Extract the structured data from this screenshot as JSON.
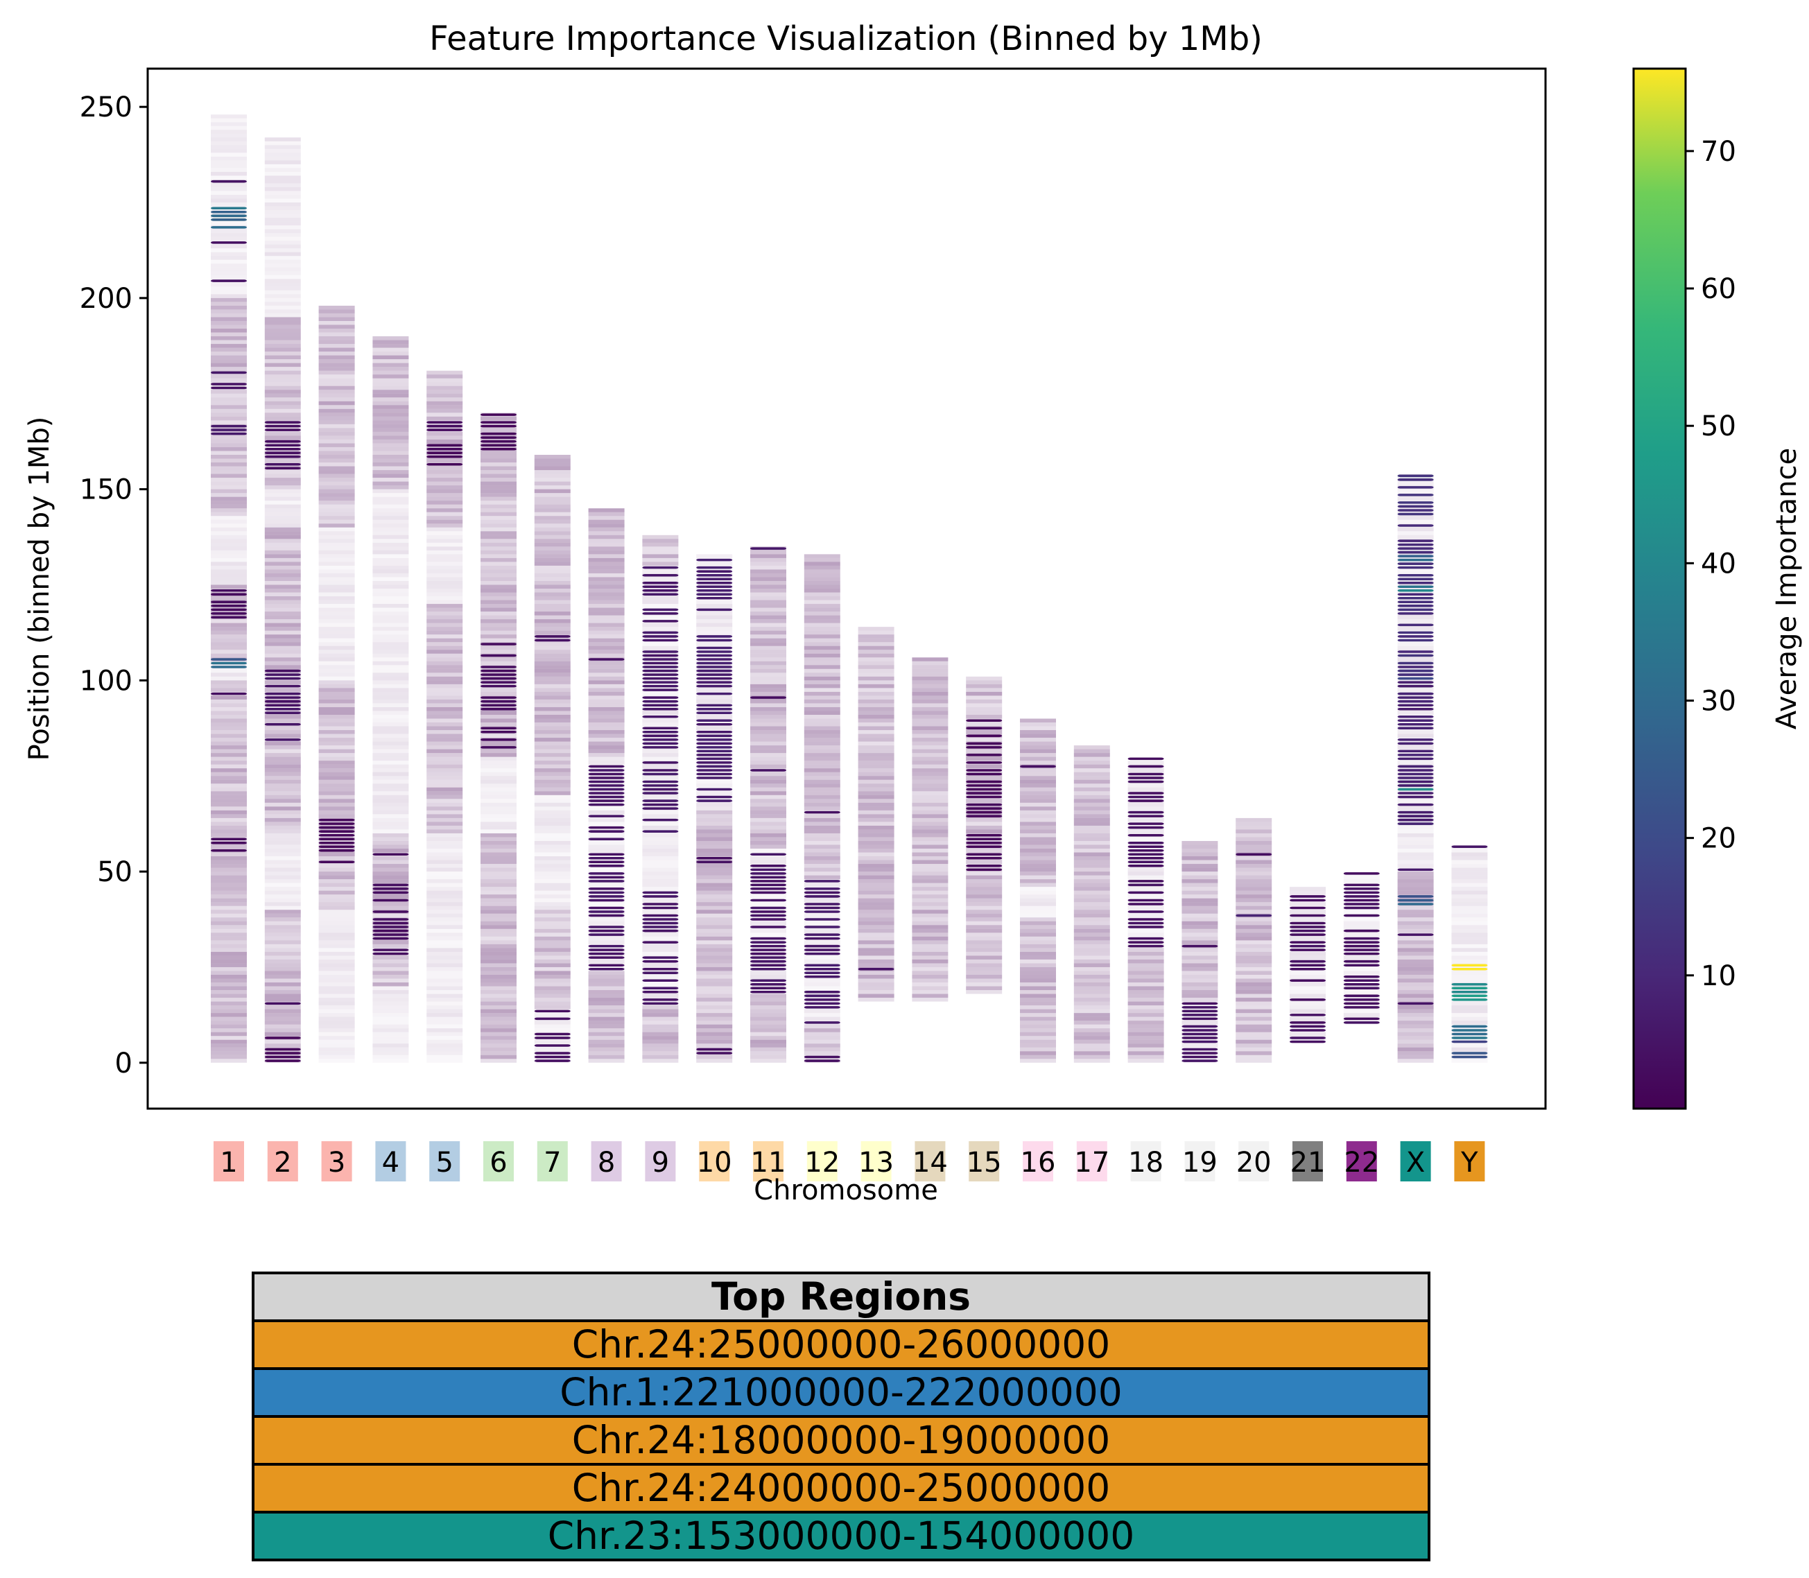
{
  "chart_data": {
    "type": "heatmap",
    "title": "Feature Importance Visualization (Binned by 1Mb)",
    "xlabel": "Chromosome",
    "ylabel": "Position (binned by 1Mb)",
    "ylim": [
      -12,
      260
    ],
    "yticks": [
      0,
      50,
      100,
      150,
      200,
      250
    ],
    "colorbar": {
      "label": "Average Importance",
      "min": 0.3,
      "max": 76,
      "ticks": [
        10,
        20,
        30,
        40,
        50,
        60,
        70
      ],
      "colormap": "viridis"
    },
    "chromosomes": [
      {
        "label": "1",
        "color": "#fbb4ae",
        "start": 0,
        "end": 248,
        "hot": [
          [
            220,
            222,
            70
          ],
          [
            218,
            224,
            30
          ],
          [
            103,
            106,
            30
          ],
          [
            164,
            167,
            6
          ],
          [
            176,
            182,
            5
          ],
          [
            230,
            231,
            4
          ],
          [
            214,
            215,
            4
          ],
          [
            204,
            205,
            4
          ],
          [
            96,
            97,
            4
          ],
          [
            55,
            60,
            3
          ],
          [
            116,
            125,
            3
          ]
        ],
        "warm": [
          [
            143,
            200
          ],
          [
            105,
            125
          ],
          [
            0,
            100
          ]
        ]
      },
      {
        "label": "2",
        "color": "#fbb4ae",
        "start": 0,
        "end": 242,
        "hot": [
          [
            84,
            103,
            5
          ],
          [
            155,
            168,
            4
          ],
          [
            15,
            16,
            4
          ],
          [
            0,
            10,
            2
          ]
        ],
        "warm": [
          [
            150,
            195
          ],
          [
            60,
            140
          ],
          [
            0,
            40
          ]
        ]
      },
      {
        "label": "3",
        "color": "#fbb4ae",
        "start": 0,
        "end": 198,
        "hot": [
          [
            52,
            65,
            2
          ]
        ],
        "warm": [
          [
            140,
            198
          ],
          [
            40,
            100
          ]
        ]
      },
      {
        "label": "4",
        "color": "#b3cde3",
        "start": 0,
        "end": 190,
        "hot": [
          [
            26,
            47,
            3
          ],
          [
            54,
            55,
            3
          ]
        ],
        "warm": [
          [
            150,
            190
          ],
          [
            20,
            60
          ]
        ]
      },
      {
        "label": "5",
        "color": "#b3cde3",
        "start": 0,
        "end": 181,
        "hot": [
          [
            165,
            168,
            3
          ],
          [
            155,
            162,
            2
          ]
        ],
        "warm": [
          [
            140,
            181
          ],
          [
            60,
            120
          ]
        ]
      },
      {
        "label": "6",
        "color": "#ccebc5",
        "start": 0,
        "end": 170,
        "hot": [
          [
            82,
            112,
            3
          ],
          [
            160,
            170,
            2
          ]
        ],
        "warm": [
          [
            80,
            170
          ],
          [
            0,
            60
          ]
        ]
      },
      {
        "label": "7",
        "color": "#ccebc5",
        "start": 0,
        "end": 159,
        "hot": [
          [
            0,
            14,
            4
          ],
          [
            110,
            112,
            4
          ]
        ],
        "warm": [
          [
            70,
            159
          ],
          [
            14,
            40
          ]
        ]
      },
      {
        "label": "8",
        "color": "#decbe4",
        "start": 0,
        "end": 145,
        "hot": [
          [
            24,
            78,
            5
          ],
          [
            105,
            106,
            4
          ]
        ],
        "warm": [
          [
            80,
            145
          ],
          [
            0,
            24
          ]
        ]
      },
      {
        "label": "9",
        "color": "#decbe4",
        "start": 0,
        "end": 138,
        "hot": [
          [
            60,
            130,
            6
          ],
          [
            15,
            45,
            5
          ]
        ],
        "warm": [
          [
            130,
            138
          ],
          [
            0,
            15
          ]
        ]
      },
      {
        "label": "10",
        "color": "#fed9a6",
        "start": 0,
        "end": 133,
        "hot": [
          [
            66,
            133,
            7
          ],
          [
            52,
            54,
            4
          ],
          [
            2,
            4,
            4
          ]
        ],
        "warm": [
          [
            0,
            66
          ]
        ]
      },
      {
        "label": "11",
        "color": "#fed9a6",
        "start": 0,
        "end": 135,
        "hot": [
          [
            18,
            56,
            5
          ],
          [
            134,
            135,
            5
          ],
          [
            76,
            77,
            4
          ],
          [
            95,
            96,
            3
          ]
        ],
        "warm": [
          [
            56,
            135
          ],
          [
            0,
            18
          ]
        ]
      },
      {
        "label": "12",
        "color": "#ffffcc",
        "start": 0,
        "end": 133,
        "hot": [
          [
            10,
            48,
            6
          ],
          [
            65,
            66,
            4
          ],
          [
            0,
            2,
            4
          ]
        ],
        "warm": [
          [
            48,
            133
          ],
          [
            0,
            10
          ]
        ]
      },
      {
        "label": "13",
        "color": "#ffffcc",
        "start": 16,
        "end": 114,
        "hot": [
          [
            24,
            25,
            4
          ]
        ],
        "warm": [
          [
            16,
            114
          ]
        ]
      },
      {
        "label": "14",
        "color": "#e5d8bd",
        "start": 16,
        "end": 106,
        "hot": [],
        "warm": [
          [
            16,
            106
          ]
        ]
      },
      {
        "label": "15",
        "color": "#e5d8bd",
        "start": 18,
        "end": 101,
        "hot": [
          [
            50,
            90,
            2
          ]
        ],
        "warm": [
          [
            18,
            101
          ]
        ]
      },
      {
        "label": "16",
        "color": "#fddaec",
        "start": 0,
        "end": 90,
        "hot": [
          [
            77,
            78,
            4
          ]
        ],
        "warm": [
          [
            46,
            90
          ],
          [
            0,
            38
          ]
        ]
      },
      {
        "label": "17",
        "color": "#fddaec",
        "start": 0,
        "end": 83,
        "hot": [],
        "warm": [
          [
            0,
            83
          ]
        ]
      },
      {
        "label": "18",
        "color": "#f2f2f2",
        "start": 0,
        "end": 79,
        "hot": [
          [
            30,
            80,
            4
          ]
        ],
        "warm": [
          [
            0,
            30
          ]
        ]
      },
      {
        "label": "19",
        "color": "#f2f2f2",
        "start": 0,
        "end": 58,
        "hot": [
          [
            0,
            16,
            5
          ],
          [
            30,
            31,
            4
          ]
        ],
        "warm": [
          [
            16,
            58
          ]
        ]
      },
      {
        "label": "20",
        "color": "#f2f2f2",
        "start": 0,
        "end": 64,
        "hot": [
          [
            38,
            39,
            10
          ],
          [
            54,
            55,
            4
          ]
        ],
        "warm": [
          [
            0,
            64
          ]
        ]
      },
      {
        "label": "21",
        "color": "#808080",
        "start": 5,
        "end": 46,
        "hot": [
          [
            5,
            46,
            4
          ]
        ],
        "warm": []
      },
      {
        "label": "22",
        "color": "#8e2b8e",
        "start": 10,
        "end": 50,
        "hot": [
          [
            10,
            50,
            4
          ]
        ],
        "warm": []
      },
      {
        "label": "X",
        "color": "#13958c",
        "start": 0,
        "end": 154,
        "hot": [
          [
            152,
            154,
            45
          ],
          [
            123,
            126,
            35
          ],
          [
            130,
            134,
            30
          ],
          [
            71,
            74,
            40
          ],
          [
            62,
            66,
            25
          ],
          [
            41,
            44,
            25
          ],
          [
            94,
            104,
            20
          ],
          [
            100,
            154,
            12
          ],
          [
            62,
            100,
            8
          ],
          [
            50,
            51,
            8
          ],
          [
            33,
            34,
            5
          ],
          [
            15,
            16,
            5
          ]
        ],
        "warm": [
          [
            0,
            50
          ]
        ]
      },
      {
        "label": "Y",
        "color": "#e6961f",
        "start": 0,
        "end": 57,
        "hot": [
          [
            25,
            26,
            75
          ],
          [
            24,
            25,
            72
          ],
          [
            18,
            19,
            60
          ],
          [
            16,
            22,
            45
          ],
          [
            6,
            12,
            30
          ],
          [
            0,
            6,
            20
          ],
          [
            56,
            57,
            5
          ]
        ],
        "warm": []
      }
    ]
  },
  "table": {
    "header": "Top Regions",
    "rows": [
      {
        "label": "Chr.24:25000000-26000000",
        "color": "#e6961f"
      },
      {
        "label": "Chr.1:221000000-222000000",
        "color": "#2f80bd"
      },
      {
        "label": "Chr.24:18000000-19000000",
        "color": "#e6961f"
      },
      {
        "label": "Chr.24:24000000-25000000",
        "color": "#e6961f"
      },
      {
        "label": "Chr.23:153000000-154000000",
        "color": "#13958c"
      }
    ]
  }
}
